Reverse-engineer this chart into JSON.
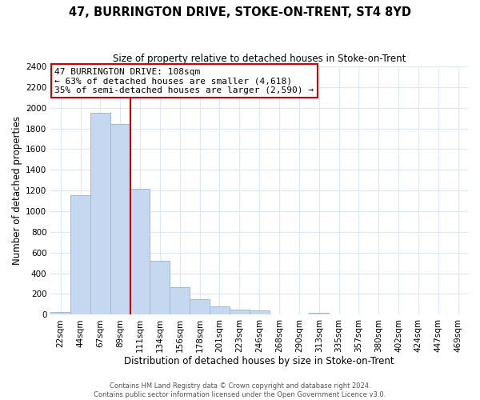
{
  "title": "47, BURRINGTON DRIVE, STOKE-ON-TRENT, ST4 8YD",
  "subtitle": "Size of property relative to detached houses in Stoke-on-Trent",
  "xlabel": "Distribution of detached houses by size in Stoke-on-Trent",
  "ylabel": "Number of detached properties",
  "bin_labels": [
    "22sqm",
    "44sqm",
    "67sqm",
    "89sqm",
    "111sqm",
    "134sqm",
    "156sqm",
    "178sqm",
    "201sqm",
    "223sqm",
    "246sqm",
    "268sqm",
    "290sqm",
    "313sqm",
    "335sqm",
    "357sqm",
    "380sqm",
    "402sqm",
    "424sqm",
    "447sqm",
    "469sqm"
  ],
  "bar_heights": [
    25,
    1155,
    1950,
    1840,
    1220,
    520,
    265,
    148,
    78,
    50,
    38,
    0,
    0,
    15,
    0,
    0,
    0,
    0,
    0,
    0,
    0
  ],
  "bar_color": "#c5d8f0",
  "bar_edge_color": "#a0b8d8",
  "vline_color": "#cc0000",
  "annotation_line1": "47 BURRINGTON DRIVE: 108sqm",
  "annotation_line2": "← 63% of detached houses are smaller (4,618)",
  "annotation_line3": "35% of semi-detached houses are larger (2,590) →",
  "annotation_box_color": "#ffffff",
  "annotation_box_edge": "#cc0000",
  "ylim": [
    0,
    2400
  ],
  "yticks": [
    0,
    200,
    400,
    600,
    800,
    1000,
    1200,
    1400,
    1600,
    1800,
    2000,
    2200,
    2400
  ],
  "footer_line1": "Contains HM Land Registry data © Crown copyright and database right 2024.",
  "footer_line2": "Contains public sector information licensed under the Open Government Licence v3.0.",
  "bg_color": "#ffffff",
  "grid_color": "#dce8f5",
  "title_fontsize": 10.5,
  "subtitle_fontsize": 8.5,
  "xlabel_fontsize": 8.5,
  "ylabel_fontsize": 8.5,
  "tick_fontsize": 7.5,
  "annot_fontsize": 8.0,
  "footer_fontsize": 6.0
}
